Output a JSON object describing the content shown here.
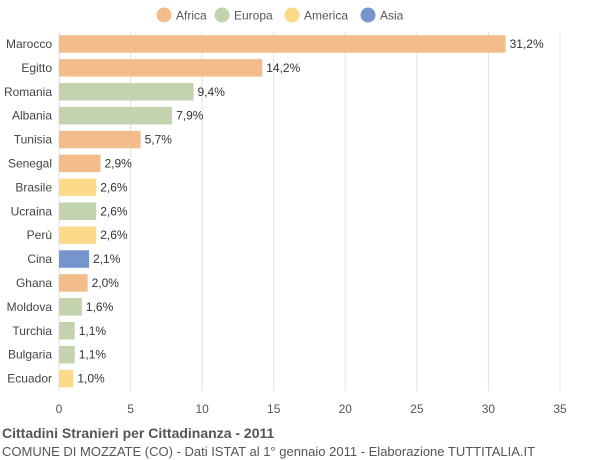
{
  "chart_data": {
    "type": "bar",
    "orientation": "horizontal",
    "title": "Cittadini Stranieri per Cittadinanza - 2011",
    "subtitle": "COMUNE DI MOZZATE (CO) - Dati ISTAT al 1° gennaio 2011 - Elaborazione TUTTITALIA.IT",
    "xlim": [
      0,
      35
    ],
    "xticks": [
      0,
      5,
      10,
      15,
      20,
      25,
      30,
      35
    ],
    "grid": true,
    "legend_position": "top-center",
    "legend": [
      {
        "name": "Africa",
        "color": "#f2bd8a"
      },
      {
        "name": "Europa",
        "color": "#c2d3ad"
      },
      {
        "name": "America",
        "color": "#fdd98a"
      },
      {
        "name": "Asia",
        "color": "#7595cc"
      }
    ],
    "bars": [
      {
        "category": "Marocco",
        "value": 31.2,
        "label": "31,2%",
        "group": "Africa"
      },
      {
        "category": "Egitto",
        "value": 14.2,
        "label": "14,2%",
        "group": "Africa"
      },
      {
        "category": "Romania",
        "value": 9.4,
        "label": "9,4%",
        "group": "Europa"
      },
      {
        "category": "Albania",
        "value": 7.9,
        "label": "7,9%",
        "group": "Europa"
      },
      {
        "category": "Tunisia",
        "value": 5.7,
        "label": "5,7%",
        "group": "Africa"
      },
      {
        "category": "Senegal",
        "value": 2.9,
        "label": "2,9%",
        "group": "Africa"
      },
      {
        "category": "Brasile",
        "value": 2.6,
        "label": "2,6%",
        "group": "America"
      },
      {
        "category": "Ucraina",
        "value": 2.6,
        "label": "2,6%",
        "group": "Europa"
      },
      {
        "category": "Perù",
        "value": 2.6,
        "label": "2,6%",
        "group": "America"
      },
      {
        "category": "Cina",
        "value": 2.1,
        "label": "2,1%",
        "group": "Asia"
      },
      {
        "category": "Ghana",
        "value": 2.0,
        "label": "2,0%",
        "group": "Africa"
      },
      {
        "category": "Moldova",
        "value": 1.6,
        "label": "1,6%",
        "group": "Europa"
      },
      {
        "category": "Turchia",
        "value": 1.1,
        "label": "1,1%",
        "group": "Europa"
      },
      {
        "category": "Bulgaria",
        "value": 1.1,
        "label": "1,1%",
        "group": "Europa"
      },
      {
        "category": "Ecuador",
        "value": 1.0,
        "label": "1,0%",
        "group": "America"
      }
    ]
  }
}
